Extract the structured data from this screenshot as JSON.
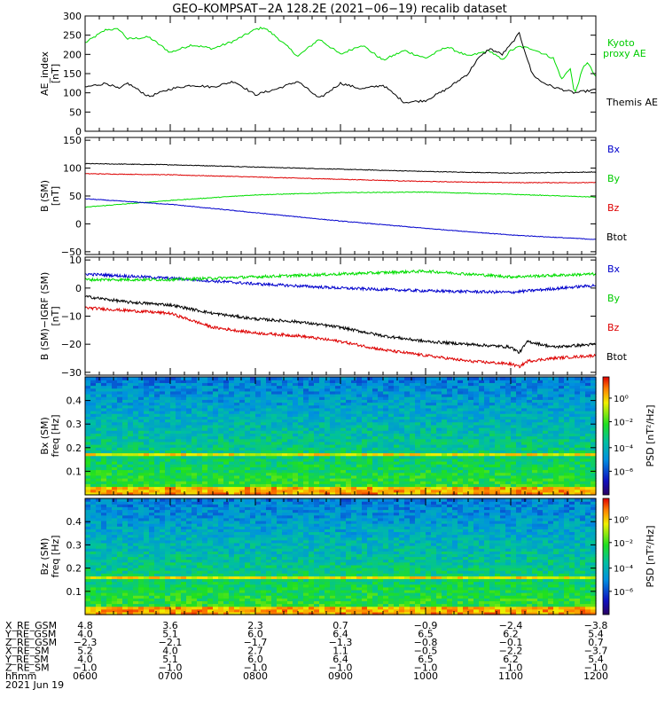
{
  "title": "GEO–KOMPSAT−2A 128.2E (2021−06−19) recalib dataset",
  "colors": {
    "black": "#000000",
    "red": "#dd0000",
    "green": "#00dd00",
    "blue": "#0000cc"
  },
  "time_ticks": [
    "0600",
    "0700",
    "0800",
    "0900",
    "1000",
    "1100",
    "1200"
  ],
  "chart_data": [
    {
      "type": "line",
      "id": "ae",
      "ylabel": [
        "AE_index",
        "[nT]"
      ],
      "ylim": [
        0,
        300
      ],
      "yticks": [
        0,
        50,
        100,
        150,
        200,
        250,
        300
      ],
      "xlim": [
        6,
        12
      ],
      "series": [
        {
          "name": "Kyoto proxy AE",
          "color": "#00dd00",
          "x": [
            6.0,
            6.25,
            6.4,
            6.5,
            6.75,
            7.0,
            7.25,
            7.5,
            7.75,
            8.0,
            8.1,
            8.25,
            8.5,
            8.75,
            9.0,
            9.25,
            9.5,
            9.75,
            10.0,
            10.25,
            10.5,
            10.75,
            10.9,
            11.0,
            11.1,
            11.25,
            11.5,
            11.6,
            11.7,
            11.75,
            11.85,
            11.9,
            12.0
          ],
          "y": [
            230,
            265,
            265,
            240,
            245,
            205,
            225,
            215,
            235,
            265,
            270,
            245,
            195,
            240,
            200,
            225,
            185,
            210,
            190,
            220,
            195,
            210,
            185,
            210,
            220,
            215,
            190,
            135,
            165,
            95,
            165,
            180,
            140
          ]
        },
        {
          "name": "Themis AE",
          "color": "#000000",
          "x": [
            6.0,
            6.25,
            6.4,
            6.5,
            6.75,
            7.0,
            7.25,
            7.5,
            7.75,
            8.0,
            8.25,
            8.5,
            8.75,
            9.0,
            9.25,
            9.5,
            9.75,
            10.0,
            10.25,
            10.5,
            10.6,
            10.75,
            10.9,
            11.0,
            11.1,
            11.25,
            11.35,
            11.5,
            11.75,
            12.0
          ],
          "y": [
            115,
            125,
            110,
            125,
            90,
            110,
            120,
            115,
            130,
            95,
            110,
            130,
            85,
            125,
            110,
            120,
            75,
            80,
            110,
            150,
            185,
            215,
            200,
            225,
            255,
            150,
            130,
            115,
            100,
            108
          ]
        }
      ]
    },
    {
      "type": "line",
      "id": "b_sm",
      "ylabel": [
        "B (SM)",
        "[nT]"
      ],
      "ylim": [
        -55,
        155
      ],
      "yticks": [
        -50,
        0,
        50,
        100,
        150
      ],
      "xlim": [
        6,
        12
      ],
      "series": [
        {
          "name": "Btot",
          "color": "#000000",
          "x": [
            6,
            7,
            8,
            9,
            10,
            11,
            12
          ],
          "y": [
            108,
            106,
            102,
            98,
            94,
            91,
            93
          ]
        },
        {
          "name": "Bz",
          "color": "#dd0000",
          "x": [
            6,
            7,
            8,
            9,
            10,
            11,
            12
          ],
          "y": [
            90,
            88,
            84,
            80,
            76,
            74,
            74
          ]
        },
        {
          "name": "By",
          "color": "#00dd00",
          "x": [
            6,
            7,
            8,
            9,
            10,
            11,
            12
          ],
          "y": [
            30,
            42,
            52,
            56,
            57,
            53,
            48
          ]
        },
        {
          "name": "Bx",
          "color": "#0000cc",
          "x": [
            6,
            7,
            8,
            9,
            10,
            11,
            12
          ],
          "y": [
            45,
            35,
            20,
            5,
            -8,
            -20,
            -28
          ]
        }
      ]
    },
    {
      "type": "line",
      "id": "b_igrf",
      "ylabel": [
        "B (SM)−IGRF (SM)",
        "[nT]"
      ],
      "ylim": [
        -31,
        11
      ],
      "yticks": [
        -30,
        -20,
        -10,
        0,
        10
      ],
      "xlim": [
        6,
        12
      ],
      "series": [
        {
          "name": "Bx",
          "color": "#0000cc",
          "x": [
            6,
            7,
            8,
            9,
            10,
            11,
            12
          ],
          "y": [
            5,
            3.5,
            1.5,
            0,
            -1,
            -1.5,
            1
          ]
        },
        {
          "name": "By",
          "color": "#00dd00",
          "x": [
            6,
            7,
            8,
            9,
            10,
            11,
            12
          ],
          "y": [
            3,
            3,
            4,
            5,
            6,
            4,
            5
          ]
        },
        {
          "name": "Btot",
          "color": "#000000",
          "x": [
            6,
            6.5,
            7,
            7.5,
            8,
            8.5,
            9,
            9.5,
            10,
            10.5,
            11,
            11.1,
            11.2,
            11.5,
            12
          ],
          "y": [
            -3,
            -5,
            -6,
            -9,
            -11,
            -12,
            -14,
            -17,
            -19,
            -20,
            -21,
            -23,
            -19,
            -21,
            -20
          ]
        },
        {
          "name": "Bz",
          "color": "#dd0000",
          "x": [
            6,
            6.5,
            7,
            7.5,
            8,
            8.5,
            9,
            9.5,
            10,
            10.5,
            11,
            11.1,
            11.2,
            11.5,
            12
          ],
          "y": [
            -7,
            -8,
            -9,
            -14,
            -16,
            -17,
            -19,
            -22,
            -24,
            -26,
            -27,
            -28,
            -26,
            -25,
            -24
          ]
        }
      ]
    },
    {
      "type": "heatmap",
      "id": "spec_bx",
      "ylabel": [
        "Bx (SM)",
        "freq [Hz]"
      ],
      "ylim": [
        0,
        0.5
      ],
      "yticks": [
        0.1,
        0.2,
        0.3,
        0.4
      ],
      "xlim": [
        6,
        12
      ],
      "colorbar": {
        "label": "PSD [nT²/Hz]",
        "ticks": [
          "10⁰",
          "10⁻²",
          "10⁻⁴",
          "10⁻⁶"
        ]
      },
      "line_freq": 0.17
    },
    {
      "type": "heatmap",
      "id": "spec_bz",
      "ylabel": [
        "Bz (SM)",
        "freq [Hz]"
      ],
      "ylim": [
        0,
        0.5
      ],
      "yticks": [
        0.1,
        0.2,
        0.3,
        0.4
      ],
      "xlim": [
        6,
        12
      ],
      "colorbar": {
        "label": "PSD [nT²/Hz]",
        "ticks": [
          "10⁰",
          "10⁻²",
          "10⁻⁴",
          "10⁻⁶"
        ]
      },
      "line_freq": 0.165
    }
  ],
  "ephemeris": {
    "rows": [
      {
        "label": "X_RE_GSM",
        "values": [
          "4.8",
          "3.6",
          "2.3",
          "0.7",
          "−0.9",
          "−2.4",
          "−3.8"
        ]
      },
      {
        "label": "Y_RE_GSM",
        "values": [
          "4.0",
          "5.1",
          "6.0",
          "6.4",
          "6.5",
          "6.2",
          "5.4"
        ]
      },
      {
        "label": "Z_RE_GSM",
        "values": [
          "−2.3",
          "−2.1",
          "−1.7",
          "−1.3",
          "−0.8",
          "−0.1",
          "0.7"
        ]
      },
      {
        "label": "X_RE_SM",
        "values": [
          "5.2",
          "4.0",
          "2.7",
          "1.1",
          "−0.5",
          "−2.2",
          "−3.7"
        ]
      },
      {
        "label": "Y_RE_SM",
        "values": [
          "4.0",
          "5.1",
          "6.0",
          "6.4",
          "6.5",
          "6.2",
          "5.4"
        ]
      },
      {
        "label": "Z_RE_SM",
        "values": [
          "−1.0",
          "−1.0",
          "−1.0",
          "−1.0",
          "−1.0",
          "−1.0",
          "−1.0"
        ]
      },
      {
        "label": "hhmm",
        "values": [
          "0600",
          "0700",
          "0800",
          "0900",
          "1000",
          "1100",
          "1200"
        ]
      }
    ],
    "date": "2021 Jun 19"
  },
  "legends": {
    "ae": [
      "Kyoto",
      "proxy AE",
      "Themis AE"
    ],
    "b_sm": [
      "Bx",
      "By",
      "Bz",
      "Btot"
    ],
    "b_igrf": [
      "Bx",
      "By",
      "Bz",
      "Btot"
    ]
  }
}
